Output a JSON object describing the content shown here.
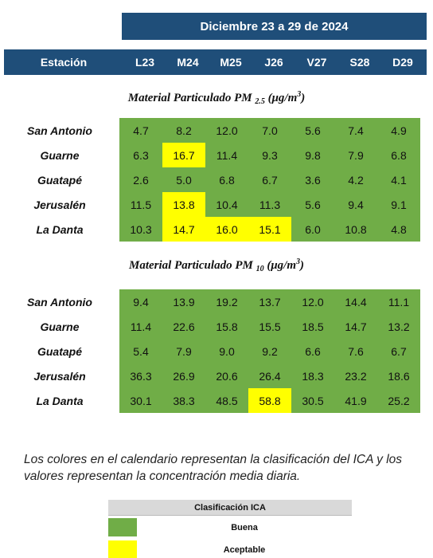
{
  "date_range": "Diciembre 23 a 29 de 2024",
  "header": {
    "station_label": "Estación",
    "days": [
      "L23",
      "M24",
      "M25",
      "J26",
      "V27",
      "S28",
      "D29"
    ]
  },
  "colors": {
    "buena": "#70ad47",
    "aceptable": "#ffff00",
    "header_bg": "#1f4e79"
  },
  "pm25": {
    "title_main": "Material Particulado PM",
    "title_sub": "2.5",
    "title_unit": "(μg/m",
    "title_sup": "3",
    "title_close": ")",
    "rows": [
      {
        "station": "San Antonio",
        "values": [
          "4.7",
          "8.2",
          "12.0",
          "7.0",
          "5.6",
          "7.4",
          "4.9"
        ],
        "classes": [
          "b",
          "b",
          "b",
          "b",
          "b",
          "b",
          "b"
        ]
      },
      {
        "station": "Guarne",
        "values": [
          "6.3",
          "16.7",
          "11.4",
          "9.3",
          "9.8",
          "7.9",
          "6.8"
        ],
        "classes": [
          "b",
          "a",
          "b",
          "b",
          "b",
          "b",
          "b"
        ]
      },
      {
        "station": "Guatapé",
        "values": [
          "2.6",
          "5.0",
          "6.8",
          "6.7",
          "3.6",
          "4.2",
          "4.1"
        ],
        "classes": [
          "b",
          "b",
          "b",
          "b",
          "b",
          "b",
          "b"
        ]
      },
      {
        "station": "Jerusalén",
        "values": [
          "11.5",
          "13.8",
          "10.4",
          "11.3",
          "5.6",
          "9.4",
          "9.1"
        ],
        "classes": [
          "b",
          "a",
          "b",
          "b",
          "b",
          "b",
          "b"
        ]
      },
      {
        "station": "La Danta",
        "values": [
          "10.3",
          "14.7",
          "16.0",
          "15.1",
          "6.0",
          "10.8",
          "4.8"
        ],
        "classes": [
          "b",
          "a",
          "a",
          "a",
          "b",
          "b",
          "b"
        ]
      }
    ]
  },
  "pm10": {
    "title_main": "Material Particulado PM",
    "title_sub": "10",
    "title_unit": "(μg/m",
    "title_sup": "3",
    "title_close": ")",
    "rows": [
      {
        "station": "San Antonio",
        "values": [
          "9.4",
          "13.9",
          "19.2",
          "13.7",
          "12.0",
          "14.4",
          "11.1"
        ],
        "classes": [
          "b",
          "b",
          "b",
          "b",
          "b",
          "b",
          "b"
        ]
      },
      {
        "station": "Guarne",
        "values": [
          "11.4",
          "22.6",
          "15.8",
          "15.5",
          "18.5",
          "14.7",
          "13.2"
        ],
        "classes": [
          "b",
          "b",
          "b",
          "b",
          "b",
          "b",
          "b"
        ]
      },
      {
        "station": "Guatapé",
        "values": [
          "5.4",
          "7.9",
          "9.0",
          "9.2",
          "6.6",
          "7.6",
          "6.7"
        ],
        "classes": [
          "b",
          "b",
          "b",
          "b",
          "b",
          "b",
          "b"
        ]
      },
      {
        "station": "Jerusalén",
        "values": [
          "36.3",
          "26.9",
          "20.6",
          "26.4",
          "18.3",
          "23.2",
          "18.6"
        ],
        "classes": [
          "b",
          "b",
          "b",
          "b",
          "b",
          "b",
          "b"
        ]
      },
      {
        "station": "La Danta",
        "values": [
          "30.1",
          "38.3",
          "48.5",
          "58.8",
          "30.5",
          "41.9",
          "25.2"
        ],
        "classes": [
          "b",
          "b",
          "b",
          "a",
          "b",
          "b",
          "b"
        ]
      }
    ]
  },
  "note": "Los colores en el calendario representan la clasificación del ICA y los valores representan la concentración media diaria.",
  "legend": {
    "title": "Clasificación  ICA",
    "items": [
      {
        "label": "Buena",
        "color": "#70ad47"
      },
      {
        "label": "Aceptable",
        "color": "#ffff00"
      }
    ]
  }
}
